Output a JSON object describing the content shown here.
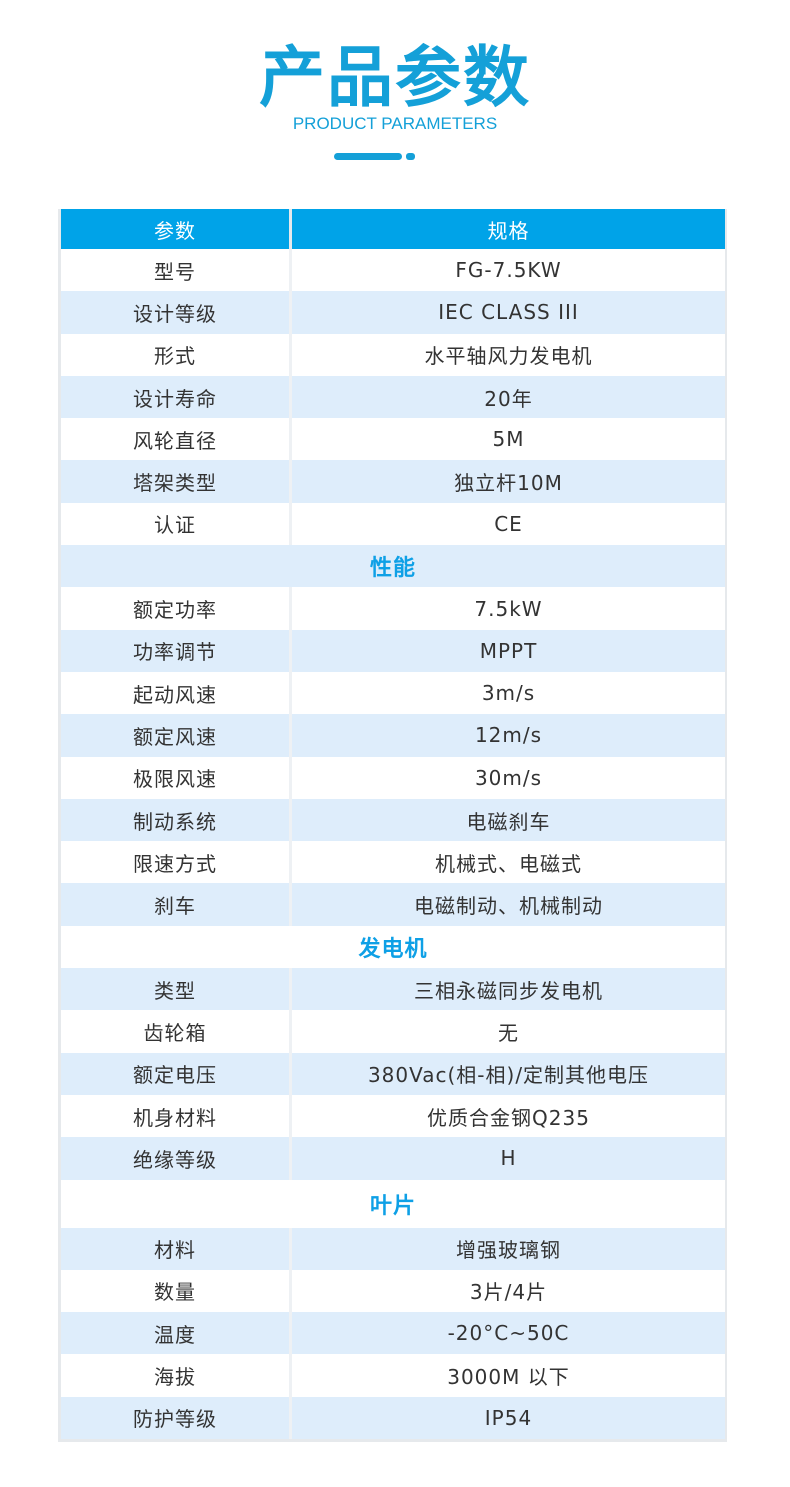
{
  "header": {
    "title": "产品参数",
    "subtitle": "PRODUCT PARAMETERS"
  },
  "colors": {
    "accent": "#14a0d8",
    "table_header": "#00a3e8",
    "row_alt": "#deedfb"
  },
  "table": {
    "columns": [
      "参数",
      "规格"
    ],
    "rows": [
      {
        "param": "型号",
        "value": "FG-7.5KW"
      },
      {
        "param": "设计等级",
        "value": "IEC CLASS III"
      },
      {
        "param": "形式",
        "value": "水平轴风力发电机"
      },
      {
        "param": "设计寿命",
        "value": "20年"
      },
      {
        "param": "风轮直径",
        "value": "5M"
      },
      {
        "param": "塔架类型",
        "value": "独立杆10M"
      },
      {
        "param": "认证",
        "value": "CE"
      },
      {
        "section": "性能"
      },
      {
        "param": "额定功率",
        "value": "7.5kW"
      },
      {
        "param": "功率调节",
        "value": "MPPT"
      },
      {
        "param": "起动风速",
        "value": "3m/s"
      },
      {
        "param": "额定风速",
        "value": "12m/s"
      },
      {
        "param": "极限风速",
        "value": "30m/s"
      },
      {
        "param": "制动系统",
        "value": "电磁刹车"
      },
      {
        "param": "限速方式",
        "value": "机械式、电磁式"
      },
      {
        "param": "刹车",
        "value": "电磁制动、机械制动"
      },
      {
        "section": "发电机"
      },
      {
        "param": "类型",
        "value": "三相永磁同步发电机"
      },
      {
        "param": "齿轮箱",
        "value": "无"
      },
      {
        "param": "额定电压",
        "value": "380Vac(相-相)/定制其他电压"
      },
      {
        "param": "机身材料",
        "value": "优质合金钢Q235"
      },
      {
        "param": "绝缘等级",
        "value": "H"
      },
      {
        "section": "叶片"
      },
      {
        "param": "材料",
        "value": "增强玻璃钢"
      },
      {
        "param": "数量",
        "value": "3片/4片"
      },
      {
        "param": "温度",
        "value": "-20°C~50C"
      },
      {
        "param": "海拔",
        "value": "3000M 以下"
      },
      {
        "param": "防护等级",
        "value": "IP54"
      }
    ]
  }
}
